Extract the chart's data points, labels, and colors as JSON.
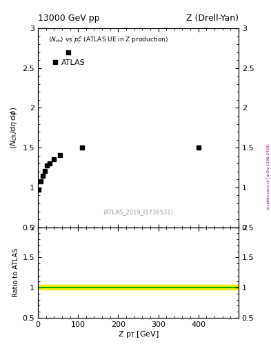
{
  "title_left": "13000 GeV pp",
  "title_right": "Z (Drell-Yan)",
  "annotation": "(ATLAS_2019_I1736531)",
  "side_label": "mcplots.cern.ch [arXiv:1306.3436]",
  "legend_label": "ATLAS",
  "inner_title": "<N_{ch}> vs p_{T}^{Z} (ATLAS UE in Z production)",
  "xlabel": "Z p_{T} [GeV]",
  "ylabel": "<N_{ch}/d#eta d#phi>",
  "ylabel_ratio": "Ratio to ATLAS",
  "data_x": [
    2.5,
    7.5,
    12.5,
    17.5,
    22.5,
    30,
    40,
    55,
    75,
    110,
    400
  ],
  "data_y": [
    0.975,
    1.075,
    1.15,
    1.21,
    1.28,
    1.3,
    1.35,
    1.41,
    2.7,
    1.5,
    1.5
  ],
  "xlim": [
    0,
    500
  ],
  "ylim_main": [
    0.5,
    3.0
  ],
  "ylim_ratio": [
    0.5,
    2.0
  ],
  "xticks": [
    0,
    100,
    200,
    300,
    400,
    500
  ],
  "xticklabels": [
    "0",
    "100",
    "200",
    "300",
    "400",
    ""
  ],
  "yticks_main": [
    0.5,
    1.0,
    1.5,
    2.0,
    2.5,
    3.0
  ],
  "yticks_ratio": [
    0.5,
    1.0,
    1.5,
    2.0
  ],
  "ratio_band_yellow": "#eeee00",
  "ratio_line_green": "#00aa00",
  "marker_color": "#000000",
  "marker_style": "s",
  "marker_size": 5,
  "background_color": "#ffffff"
}
